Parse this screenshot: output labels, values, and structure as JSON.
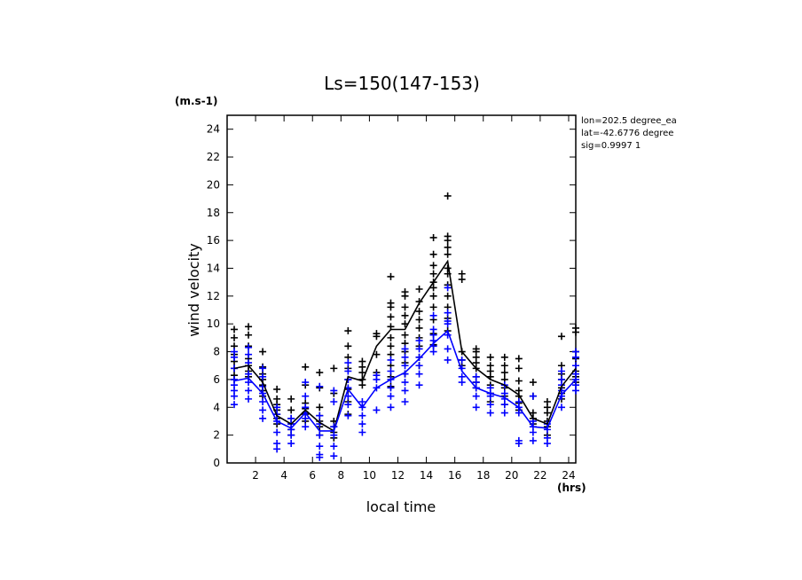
{
  "chart_data": {
    "type": "scatter",
    "title": "Ls=150(147-153)",
    "xlabel": "local time",
    "ylabel": "wind velocity",
    "yunit": "(m.s-1)",
    "xunit": "(hrs)",
    "xlim": [
      0,
      24.5
    ],
    "ylim": [
      0,
      25
    ],
    "xticks": [
      2,
      4,
      6,
      8,
      10,
      12,
      14,
      16,
      18,
      20,
      22,
      24
    ],
    "yticks": [
      0,
      2,
      4,
      6,
      8,
      10,
      12,
      14,
      16,
      18,
      20,
      22,
      24
    ],
    "grid": false,
    "annotations": [
      "lon=202.5 degree_ea",
      "lat=-42.6776 degree",
      "sig=0.9997 1"
    ],
    "x": [
      0.5,
      1.5,
      2.5,
      3.5,
      4.5,
      5.5,
      6.5,
      7.5,
      8.5,
      9.5,
      10.5,
      11.5,
      12.5,
      13.5,
      14.5,
      15.5,
      16.5,
      17.5,
      18.5,
      19.5,
      20.5,
      21.5,
      22.5,
      23.5,
      24.5
    ],
    "series": [
      {
        "color": "#000000",
        "mean": [
          6.8,
          7.0,
          5.8,
          3.4,
          2.8,
          3.8,
          2.9,
          2.3,
          6.2,
          5.9,
          8.4,
          9.6,
          9.6,
          11.5,
          13.0,
          14.5,
          8.0,
          6.8,
          6.0,
          5.6,
          4.9,
          3.2,
          2.8,
          5.5,
          6.8
        ],
        "points": [
          [
            6.0,
            6.3,
            6.8,
            7.3,
            7.8,
            8.4,
            9.0,
            9.6
          ],
          [
            6.2,
            6.6,
            7.0,
            7.5,
            8.4,
            9.2,
            9.8
          ],
          [
            4.8,
            5.2,
            5.6,
            6.0,
            6.4,
            6.9,
            8.0
          ],
          [
            2.8,
            3.2,
            3.5,
            3.8,
            4.2,
            4.6,
            5.3
          ],
          [
            2.0,
            2.4,
            2.8,
            3.2,
            3.8,
            4.6
          ],
          [
            3.0,
            3.5,
            3.9,
            4.3,
            5.6,
            6.9
          ],
          [
            2.0,
            2.6,
            3.0,
            3.4,
            4.0,
            5.4,
            6.5
          ],
          [
            1.8,
            2.2,
            2.6,
            3.0,
            5.0,
            6.8
          ],
          [
            3.5,
            4.4,
            5.3,
            6.0,
            6.8,
            7.6,
            8.4,
            9.5
          ],
          [
            5.6,
            6.0,
            6.5,
            6.9,
            7.3
          ],
          [
            6.5,
            7.8,
            9.1,
            9.3
          ],
          [
            5.5,
            6.2,
            7.0,
            7.8,
            8.4,
            9.0,
            9.8,
            10.5,
            11.2,
            11.5,
            13.4
          ],
          [
            6.4,
            7.2,
            8.0,
            8.6,
            9.2,
            10.0,
            10.6,
            11.2,
            12.0,
            12.3
          ],
          [
            7.0,
            7.6,
            8.4,
            9.0,
            9.7,
            10.3,
            10.9,
            11.6,
            12.5
          ],
          [
            8.5,
            9.3,
            10.3,
            11.2,
            12.0,
            12.6,
            13.0,
            13.6,
            14.2,
            15.0,
            16.2
          ],
          [
            9.5,
            10.4,
            11.2,
            12.0,
            12.8,
            13.6,
            14.0,
            15.0,
            15.5,
            16.0,
            16.3,
            19.2
          ],
          [
            7.0,
            7.4,
            8.0,
            13.2,
            13.6
          ],
          [
            5.4,
            5.8,
            6.2,
            6.8,
            7.2,
            7.6,
            8.0,
            8.2
          ],
          [
            4.4,
            5.0,
            5.6,
            6.2,
            6.6,
            7.0,
            7.6
          ],
          [
            4.2,
            4.8,
            5.4,
            6.0,
            6.5,
            7.0,
            7.6
          ],
          [
            3.8,
            4.3,
            4.8,
            5.2,
            5.9,
            6.8,
            7.5
          ],
          [
            2.8,
            3.2,
            3.6,
            4.8,
            5.8
          ],
          [
            2.0,
            2.6,
            3.0,
            3.6,
            4.0,
            4.4
          ],
          [
            4.6,
            5.0,
            5.4,
            6.0,
            6.4,
            7.0,
            9.1
          ],
          [
            5.8,
            6.2,
            6.6,
            7.0,
            7.5,
            8.0,
            9.4,
            9.7
          ]
        ]
      },
      {
        "color": "#0000ff",
        "mean": [
          5.9,
          6.1,
          5.0,
          3.0,
          2.5,
          3.6,
          2.3,
          2.3,
          5.3,
          4.0,
          5.4,
          6.0,
          6.5,
          7.5,
          8.6,
          9.5,
          6.6,
          5.4,
          5.0,
          4.7,
          4.0,
          2.6,
          2.5,
          4.9,
          6.0
        ],
        "points": [
          [
            4.2,
            4.8,
            5.2,
            5.6,
            6.0,
            6.8,
            7.6,
            8.0
          ],
          [
            4.6,
            5.2,
            5.8,
            6.4,
            7.2,
            7.8,
            8.3
          ],
          [
            3.2,
            3.8,
            4.4,
            5.0,
            5.5,
            6.2,
            6.8
          ],
          [
            1.0,
            1.4,
            2.2,
            3.0,
            3.5,
            4.0
          ],
          [
            1.4,
            2.0,
            2.4,
            2.8,
            3.2
          ],
          [
            2.6,
            3.2,
            3.6,
            4.0,
            4.8,
            5.8
          ],
          [
            0.4,
            0.6,
            1.2,
            2.0,
            2.8,
            3.4,
            5.5
          ],
          [
            0.5,
            1.2,
            2.0,
            2.6,
            4.4,
            5.2
          ],
          [
            3.4,
            4.2,
            4.8,
            5.4,
            6.0,
            6.6,
            7.2
          ],
          [
            2.2,
            2.8,
            3.4,
            4.0,
            4.4
          ],
          [
            3.8,
            5.4,
            6.0,
            6.3
          ],
          [
            4.0,
            4.8,
            5.4,
            6.0,
            6.6,
            7.4
          ],
          [
            4.4,
            5.2,
            5.8,
            6.4,
            7.0,
            7.6,
            8.2
          ],
          [
            5.6,
            6.4,
            7.0,
            7.6,
            8.2,
            8.8
          ],
          [
            8.0,
            8.4,
            8.8,
            9.2,
            9.6,
            10.6
          ],
          [
            7.4,
            8.2,
            9.2,
            10.0,
            10.2,
            10.8,
            12.6
          ],
          [
            5.8,
            6.2,
            6.8,
            7.4
          ],
          [
            4.0,
            4.8,
            5.4,
            5.8,
            6.2
          ],
          [
            3.6,
            4.2,
            4.8,
            5.0,
            5.4
          ],
          [
            3.6,
            4.2,
            4.6,
            5.0,
            5.6
          ],
          [
            1.4,
            1.6,
            3.6,
            4.0,
            4.4
          ],
          [
            1.6,
            2.2,
            2.6,
            3.0,
            4.8
          ],
          [
            1.4,
            1.8,
            2.4,
            2.8
          ],
          [
            4.0,
            4.8,
            5.2,
            5.6,
            6.0,
            6.6
          ],
          [
            5.2,
            5.6,
            6.0,
            6.4,
            7.0,
            7.6,
            8.0
          ]
        ]
      }
    ]
  }
}
